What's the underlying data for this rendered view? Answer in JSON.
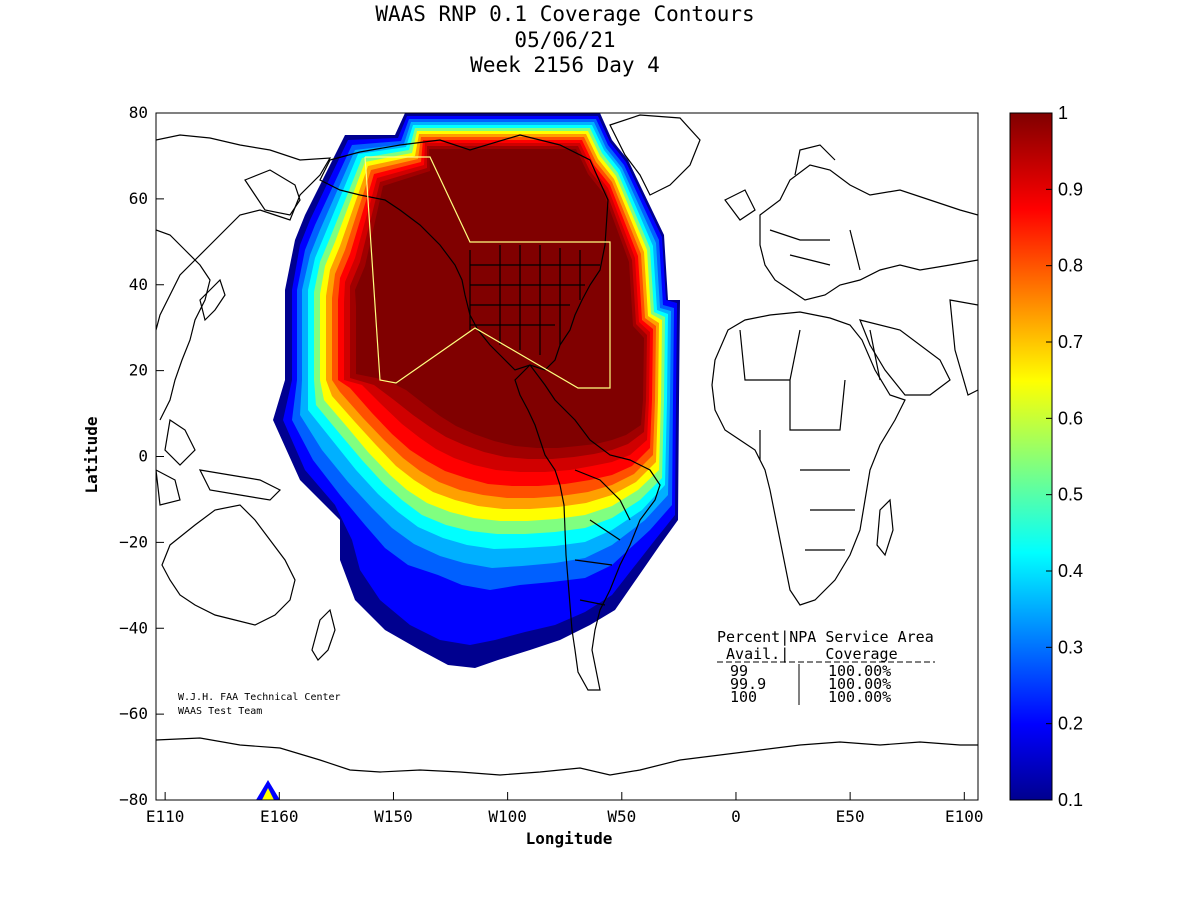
{
  "figure": {
    "title_lines": [
      "WAAS RNP 0.1 Coverage Contours",
      "05/06/21",
      "Week 2156 Day 4"
    ],
    "xlabel": "Longitude",
    "ylabel": "Latitude",
    "x_ticks": [
      {
        "value": 110,
        "label": "E110"
      },
      {
        "value": 160,
        "label": "E160"
      },
      {
        "value": 210,
        "label": "W150"
      },
      {
        "value": 260,
        "label": "W100"
      },
      {
        "value": 310,
        "label": "W50"
      },
      {
        "value": 360,
        "label": "0"
      },
      {
        "value": 410,
        "label": "E50"
      },
      {
        "value": 460,
        "label": "E100"
      }
    ],
    "y_ticks": [
      {
        "value": 80,
        "label": "80"
      },
      {
        "value": 60,
        "label": "60"
      },
      {
        "value": 40,
        "label": "40"
      },
      {
        "value": 20,
        "label": "20"
      },
      {
        "value": 0,
        "label": "0"
      },
      {
        "value": -20,
        "label": "−20"
      },
      {
        "value": -40,
        "label": "−40"
      },
      {
        "value": -60,
        "label": "−60"
      },
      {
        "value": -80,
        "label": "−80"
      }
    ],
    "x_range": [
      106,
      466
    ],
    "y_range": [
      -80,
      80
    ],
    "credit_lines": [
      "W.J.H. FAA Technical Center",
      "WAAS Test Team"
    ],
    "coverage_table": {
      "header_line1": "Percent|NPA Service Area",
      "header_line2": " Avail.|    Coverage",
      "rows": [
        {
          "avail": "99",
          "coverage": "100.00%"
        },
        {
          "avail": "99.9",
          "coverage": "100.00%"
        },
        {
          "avail": "100",
          "coverage": "100.00%"
        }
      ]
    },
    "colorbar": {
      "min": 0.1,
      "max": 1,
      "tick_labels": [
        "1",
        "0.9",
        "0.8",
        "0.7",
        "0.6",
        "0.5",
        "0.4",
        "0.3",
        "0.2",
        "0.1"
      ]
    },
    "colors": {
      "high": "#800000",
      "red": "#ff0000",
      "yellow": "#ffff00",
      "cyan": "#00ffff",
      "blue": "#0000ff",
      "low": "#00008f",
      "service_area_outline": "#ffff80"
    }
  }
}
